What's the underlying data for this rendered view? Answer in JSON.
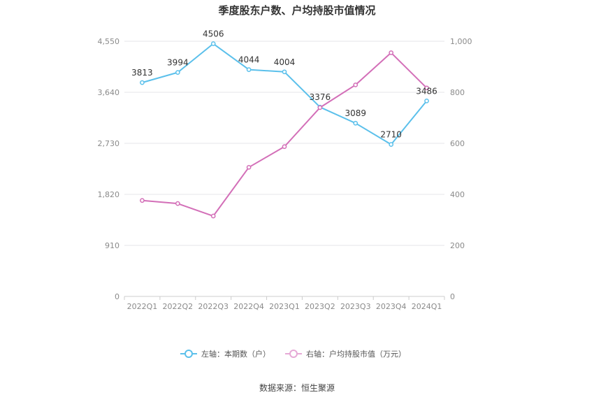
{
  "chart_data": {
    "type": "line",
    "title": "季度股东户数、户均持股市值情况",
    "categories": [
      "2022Q1",
      "2022Q2",
      "2022Q3",
      "2022Q4",
      "2023Q1",
      "2023Q2",
      "2023Q3",
      "2023Q4",
      "2024Q1"
    ],
    "y_left": {
      "ylim": [
        0,
        4550
      ],
      "ticks": [
        "0",
        "910",
        "1,820",
        "2,730",
        "3,640",
        "4,550"
      ]
    },
    "y_right": {
      "ylim": [
        0,
        1000
      ],
      "ticks": [
        "0",
        "200",
        "400",
        "600",
        "800",
        "1,000"
      ]
    },
    "series": [
      {
        "name": "左轴：本期数（户）",
        "axis": "left",
        "color": "#5bc0eb",
        "values": [
          3813,
          3994,
          4506,
          4044,
          4004,
          3376,
          3089,
          2710,
          3486
        ],
        "labels": [
          "3813",
          "3994",
          "4506",
          "4044",
          "4004",
          "3376",
          "3089",
          "2710",
          "3486"
        ]
      },
      {
        "name": "右轴：户均持股市值（万元）",
        "axis": "right",
        "color": "#d36fb8",
        "values": [
          376,
          364,
          315,
          506,
          587,
          740,
          829,
          955,
          817
        ]
      }
    ],
    "grid": true,
    "legend": "bottom"
  },
  "source_text": "数据来源：恒生聚源"
}
